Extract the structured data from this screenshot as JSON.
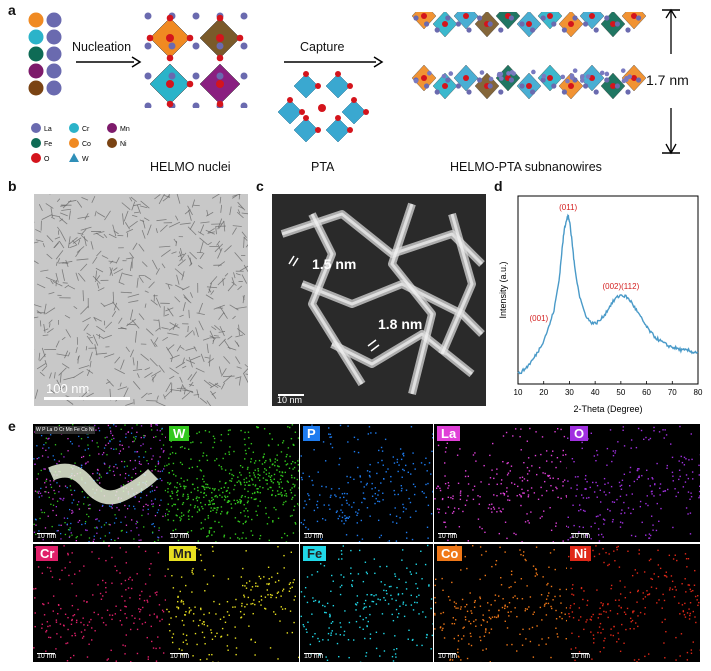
{
  "panel_a": {
    "label": "a",
    "arrow1": "Nucleation",
    "arrow2": "Capture",
    "caption_nuclei": "HELMO nuclei",
    "caption_pta": "PTA",
    "caption_wires": "HELMO-PTA subnanowires",
    "dimension": "1.7 nm",
    "legend": [
      {
        "sym": "La",
        "color": "#6a6aaf"
      },
      {
        "sym": "Cr",
        "color": "#2bb3c9"
      },
      {
        "sym": "Mn",
        "color": "#7d1a6b"
      },
      {
        "sym": "Fe",
        "color": "#0e6b55"
      },
      {
        "sym": "Co",
        "color": "#f08a22"
      },
      {
        "sym": "Ni",
        "color": "#7a4313"
      },
      {
        "sym": "O",
        "color": "#d4141c"
      },
      {
        "sym": "W",
        "color": "#2f8fb8"
      }
    ]
  },
  "panel_b": {
    "label": "b",
    "scale": "100 nm"
  },
  "panel_c": {
    "label": "c",
    "w1": "1.5 nm",
    "w2": "1.8 nm",
    "scale": "10 nm"
  },
  "panel_d": {
    "label": "d"
  },
  "panel_e": {
    "label": "e",
    "scale": "10 nm",
    "merged_legend": "W P La O Cr Mn Fe Co Ni"
  },
  "colors": {
    "W": "#33c81e",
    "P": "#1e7cf0",
    "La": "#e040d8",
    "O": "#a030e0",
    "Cr": "#e0206a",
    "Mn": "#e8e020",
    "Fe": "#20d8e8",
    "Co": "#f07818",
    "Ni": "#e02818"
  },
  "maps": [
    {
      "name": "merged",
      "label": "",
      "color": "#ffffff"
    },
    {
      "name": "W",
      "label": "W",
      "color": "#33c81e"
    },
    {
      "name": "P",
      "label": "P",
      "color": "#1e7cf0"
    },
    {
      "name": "La",
      "label": "La",
      "color": "#e040d8"
    },
    {
      "name": "O",
      "label": "O",
      "color": "#a030e0"
    },
    {
      "name": "Cr",
      "label": "Cr",
      "color": "#e0206a"
    },
    {
      "name": "Mn",
      "label": "Mn",
      "color": "#e8e020"
    },
    {
      "name": "Fe",
      "label": "Fe",
      "color": "#20d8e8"
    },
    {
      "name": "Co",
      "label": "Co",
      "color": "#f07818"
    },
    {
      "name": "Ni",
      "label": "Ni",
      "color": "#e02818"
    }
  ],
  "chart_data": {
    "type": "line",
    "xlabel": "2-Theta (Degree)",
    "ylabel": "Intensity (a.u.)",
    "xlim": [
      10,
      80
    ],
    "x_ticks": [
      10,
      20,
      30,
      40,
      50,
      60,
      70,
      80
    ],
    "grid": false,
    "color": "#4a9ac8",
    "annotations": [
      {
        "text": "(001)",
        "x": 22
      },
      {
        "text": "(011)",
        "x": 29.5
      },
      {
        "text": "(002)(112)",
        "x": 50
      }
    ],
    "x": [
      10,
      12,
      14,
      16,
      18,
      20,
      22,
      24,
      26,
      27,
      28,
      29,
      29.5,
      30,
      31,
      32,
      34,
      36,
      38,
      40,
      42,
      44,
      46,
      48,
      50,
      52,
      54,
      56,
      58,
      60,
      62,
      64,
      66,
      68,
      70,
      72,
      74,
      76,
      78,
      80
    ],
    "y": [
      0.06,
      0.08,
      0.11,
      0.15,
      0.2,
      0.26,
      0.34,
      0.44,
      0.62,
      0.78,
      0.92,
      0.99,
      1.0,
      0.97,
      0.85,
      0.7,
      0.52,
      0.42,
      0.37,
      0.36,
      0.38,
      0.42,
      0.47,
      0.51,
      0.53,
      0.52,
      0.49,
      0.44,
      0.39,
      0.34,
      0.3,
      0.27,
      0.25,
      0.23,
      0.22,
      0.21,
      0.2,
      0.2,
      0.19,
      0.19
    ]
  }
}
